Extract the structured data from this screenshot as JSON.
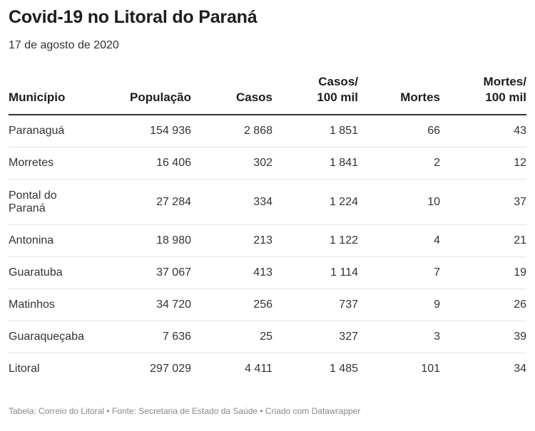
{
  "header": {
    "title": "Covid-19 no Litoral do Paraná",
    "subtitle": "17 de agosto de 2020"
  },
  "table": {
    "columns": [
      {
        "line1": "",
        "line2": "Município"
      },
      {
        "line1": "",
        "line2": "População"
      },
      {
        "line1": "",
        "line2": "Casos"
      },
      {
        "line1": "Casos/",
        "line2": "100 mil"
      },
      {
        "line1": "",
        "line2": "Mortes"
      },
      {
        "line1": "Mortes/",
        "line2": "100 mil"
      }
    ],
    "rows": [
      {
        "municipio": "Paranaguá",
        "populacao": "154 936",
        "casos": "2 868",
        "casos100": "1 851",
        "mortes": "66",
        "mortes100": "43"
      },
      {
        "municipio": "Morretes",
        "populacao": "16 406",
        "casos": "302",
        "casos100": "1 841",
        "mortes": "2",
        "mortes100": "12"
      },
      {
        "municipio_line1": "Pontal do",
        "municipio_line2": "Paraná",
        "populacao": "27 284",
        "casos": "334",
        "casos100": "1 224",
        "mortes": "10",
        "mortes100": "37"
      },
      {
        "municipio": "Antonina",
        "populacao": "18 980",
        "casos": "213",
        "casos100": "1 122",
        "mortes": "4",
        "mortes100": "21"
      },
      {
        "municipio": "Guaratuba",
        "populacao": "37 067",
        "casos": "413",
        "casos100": "1 114",
        "mortes": "7",
        "mortes100": "19"
      },
      {
        "municipio": "Matinhos",
        "populacao": "34 720",
        "casos": "256",
        "casos100": "737",
        "mortes": "9",
        "mortes100": "26"
      },
      {
        "municipio": "Guaraqueçaba",
        "populacao": "7 636",
        "casos": "25",
        "casos100": "327",
        "mortes": "3",
        "mortes100": "39"
      },
      {
        "municipio": "Litoral",
        "populacao": "297 029",
        "casos": "4 411",
        "casos100": "1 485",
        "mortes": "101",
        "mortes100": "34"
      }
    ]
  },
  "footer": {
    "text": "Tabela: Correio do Litoral • Fonte: Secretaria de Estado da Saúde • Criado com Datawrapper"
  },
  "chart_data": {
    "type": "table",
    "title": "Covid-19 no Litoral do Paraná",
    "subtitle": "17 de agosto de 2020",
    "columns": [
      "Município",
      "População",
      "Casos",
      "Casos/ 100 mil",
      "Mortes",
      "Mortes/ 100 mil"
    ],
    "rows": [
      [
        "Paranaguá",
        154936,
        2868,
        1851,
        66,
        43
      ],
      [
        "Morretes",
        16406,
        302,
        1841,
        2,
        12
      ],
      [
        "Pontal do Paraná",
        27284,
        334,
        1224,
        10,
        37
      ],
      [
        "Antonina",
        18980,
        213,
        1122,
        4,
        21
      ],
      [
        "Guaratuba",
        37067,
        413,
        1114,
        7,
        19
      ],
      [
        "Matinhos",
        34720,
        256,
        737,
        9,
        26
      ],
      [
        "Guaraqueçaba",
        7636,
        25,
        327,
        3,
        39
      ],
      [
        "Litoral",
        297029,
        4411,
        1485,
        101,
        34
      ]
    ]
  }
}
